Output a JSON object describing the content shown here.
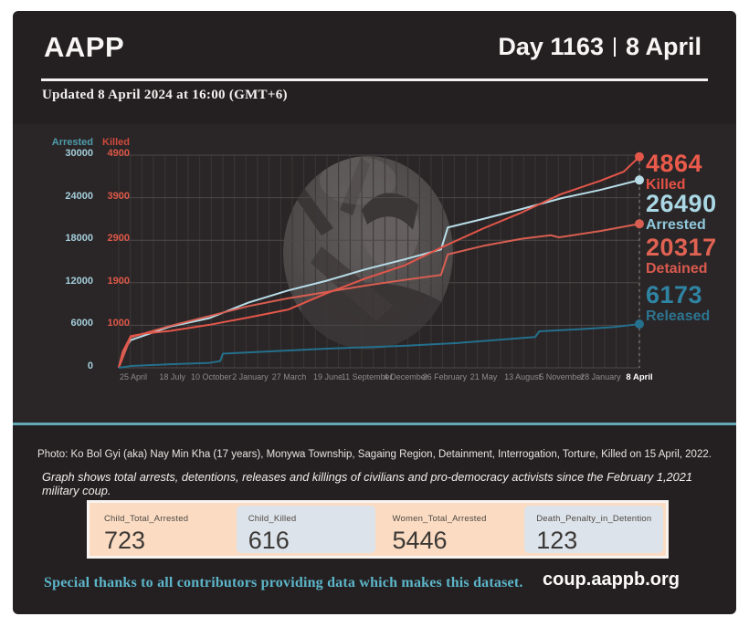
{
  "header": {
    "brand": "AAPP",
    "day_label": "Day 1163",
    "date_label": "8 April"
  },
  "updated": "Updated 8 April 2024 at 16:00 (GMT+6)",
  "chart_data": {
    "type": "line",
    "x_ticks": [
      "25 April",
      "18 July",
      "10 October",
      "2 January",
      "27 March",
      "19 June",
      "11 September",
      "4 December",
      "26 February",
      "21 May",
      "13 August",
      "5 November",
      "28 January",
      "8 April"
    ],
    "axes": {
      "arrested_header": "Arrested",
      "killed_header": "Killed",
      "arrested_max": 30000,
      "killed_max": 4900,
      "rows": [
        {
          "arrested": "30000",
          "killed": "4900",
          "value": 30000
        },
        {
          "arrested": "24000",
          "killed": "3900",
          "value": 24000
        },
        {
          "arrested": "18000",
          "killed": "2900",
          "value": 18000
        },
        {
          "arrested": "12000",
          "killed": "1900",
          "value": 12000
        },
        {
          "arrested": "6000",
          "killed": "1000",
          "value": 6000
        },
        {
          "arrested": "0",
          "killed": "",
          "value": 0
        }
      ]
    },
    "series": [
      {
        "name": "Arrested",
        "color": "#b8dde8",
        "axis_max": 30000,
        "final": 26490,
        "points": [
          [
            0,
            0
          ],
          [
            0.008,
            2300
          ],
          [
            0.023,
            3900
          ],
          [
            0.098,
            5800
          ],
          [
            0.174,
            7000
          ],
          [
            0.249,
            9200
          ],
          [
            0.325,
            10900
          ],
          [
            0.4,
            12300
          ],
          [
            0.474,
            13900
          ],
          [
            0.549,
            15300
          ],
          [
            0.619,
            16700
          ],
          [
            0.632,
            19800
          ],
          [
            0.7,
            21000
          ],
          [
            0.774,
            22400
          ],
          [
            0.849,
            23900
          ],
          [
            0.925,
            25100
          ],
          [
            1,
            26490
          ]
        ]
      },
      {
        "name": "Detained",
        "color": "#d85e51",
        "axis_max": 30000,
        "final": 20317,
        "points": [
          [
            0,
            0
          ],
          [
            0.008,
            1500
          ],
          [
            0.023,
            4300
          ],
          [
            0.098,
            5900
          ],
          [
            0.174,
            7300
          ],
          [
            0.249,
            8700
          ],
          [
            0.325,
            9800
          ],
          [
            0.4,
            10700
          ],
          [
            0.474,
            11600
          ],
          [
            0.549,
            12400
          ],
          [
            0.619,
            13100
          ],
          [
            0.632,
            16000
          ],
          [
            0.7,
            17200
          ],
          [
            0.774,
            18200
          ],
          [
            0.83,
            18700
          ],
          [
            0.845,
            18400
          ],
          [
            0.925,
            19300
          ],
          [
            1,
            20317
          ]
        ]
      },
      {
        "name": "Killed",
        "color": "#e4564a",
        "axis_max": 4900,
        "final": 4864,
        "points": [
          [
            0,
            0
          ],
          [
            0.008,
            380
          ],
          [
            0.023,
            730
          ],
          [
            0.05,
            790
          ],
          [
            0.098,
            850
          ],
          [
            0.174,
            990
          ],
          [
            0.249,
            1160
          ],
          [
            0.325,
            1340
          ],
          [
            0.4,
            1720
          ],
          [
            0.474,
            2060
          ],
          [
            0.549,
            2360
          ],
          [
            0.623,
            2790
          ],
          [
            0.7,
            3210
          ],
          [
            0.774,
            3580
          ],
          [
            0.849,
            4000
          ],
          [
            0.925,
            4310
          ],
          [
            0.97,
            4520
          ],
          [
            1,
            4864
          ]
        ]
      },
      {
        "name": "Released",
        "color": "#24708d",
        "axis_max": 30000,
        "final": 6173,
        "points": [
          [
            0,
            0
          ],
          [
            0.023,
            250
          ],
          [
            0.098,
            500
          ],
          [
            0.174,
            700
          ],
          [
            0.195,
            950
          ],
          [
            0.2,
            2000
          ],
          [
            0.3,
            2350
          ],
          [
            0.4,
            2700
          ],
          [
            0.474,
            2900
          ],
          [
            0.549,
            3100
          ],
          [
            0.65,
            3500
          ],
          [
            0.72,
            3900
          ],
          [
            0.8,
            4350
          ],
          [
            0.808,
            5150
          ],
          [
            0.88,
            5420
          ],
          [
            0.95,
            5750
          ],
          [
            1,
            6173
          ]
        ]
      }
    ],
    "stats": [
      {
        "value": "4864",
        "label": "Killed",
        "value_color": "#ea5a4b",
        "label_color": "#e35146"
      },
      {
        "value": "26490",
        "label": "Arrested",
        "value_color": "#aad8e5",
        "label_color": "#8fc8da"
      },
      {
        "value": "20317",
        "label": "Detained",
        "value_color": "#e06253",
        "label_color": "#d85a4e"
      },
      {
        "value": "6173",
        "label": "Released",
        "value_color": "#2f84a3",
        "label_color": "#2d7490"
      }
    ]
  },
  "captions": {
    "photo": "Photo: Ko Bol Gyi (aka) Nay Min Kha (17 years), Monywa Township, Sagaing Region, Detainment, Interrogation, Torture, Killed on 15 April, 2022.",
    "graph": "Graph shows total arrests, detentions, releases and killings of civilians and pro-democracy activists since the February 1,2021 military coup."
  },
  "stat_cards": [
    {
      "label": "Child_Total_Arrested",
      "value": "723",
      "style": "peach"
    },
    {
      "label": "Child_Killed",
      "value": "616",
      "style": "blue"
    },
    {
      "label": "Women_Total_Arrested",
      "value": "5446",
      "style": "peach"
    },
    {
      "label": "Death_Penalty_in_Detention",
      "value": "123",
      "style": "blue"
    }
  ],
  "footer": {
    "thanks": "Special thanks to all contributors providing data which makes this dataset.",
    "site": "coup.aappb.org"
  }
}
